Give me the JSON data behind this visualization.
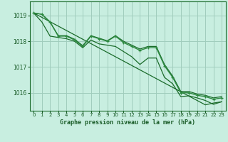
{
  "title": "Graphe pression niveau de la mer (hPa)",
  "bg_color": "#c8eee0",
  "grid_color": "#a0ccbc",
  "line_color": "#1a6b2a",
  "line_color2": "#2d8a40",
  "label_color": "#1a5c28",
  "x_ticks": [
    0,
    1,
    2,
    3,
    4,
    5,
    6,
    7,
    8,
    9,
    10,
    11,
    12,
    13,
    14,
    15,
    16,
    17,
    18,
    19,
    20,
    21,
    22,
    23
  ],
  "y_ticks": [
    1016,
    1017,
    1018,
    1019
  ],
  "ylim": [
    1015.3,
    1019.55
  ],
  "xlim": [
    -0.5,
    23.5
  ],
  "series_main": [
    1019.1,
    1019.05,
    1018.75,
    1018.2,
    1018.2,
    1018.05,
    1017.8,
    1018.2,
    1018.1,
    1018.0,
    1018.2,
    1017.95,
    1017.8,
    1017.65,
    1017.75,
    1017.75,
    1017.05,
    1016.6,
    1016.0,
    1016.0,
    1015.9,
    1015.85,
    1015.75,
    1015.8
  ],
  "series_max": [
    1019.1,
    1019.05,
    1018.75,
    1018.22,
    1018.22,
    1018.08,
    1017.83,
    1018.22,
    1018.12,
    1018.02,
    1018.22,
    1018.0,
    1017.85,
    1017.7,
    1017.8,
    1017.8,
    1017.1,
    1016.65,
    1016.05,
    1016.05,
    1015.95,
    1015.9,
    1015.8,
    1015.85
  ],
  "series_min": [
    1019.1,
    1018.75,
    1018.2,
    1018.15,
    1018.1,
    1018.0,
    1017.75,
    1018.05,
    1017.9,
    1017.85,
    1017.8,
    1017.6,
    1017.4,
    1017.1,
    1017.35,
    1017.35,
    1016.6,
    1016.35,
    1015.85,
    1015.88,
    1015.8,
    1015.7,
    1015.55,
    1015.65
  ],
  "series_trend": [
    1019.1,
    1018.93,
    1018.76,
    1018.59,
    1018.42,
    1018.25,
    1018.08,
    1017.91,
    1017.74,
    1017.57,
    1017.4,
    1017.23,
    1017.06,
    1016.89,
    1016.72,
    1016.55,
    1016.38,
    1016.21,
    1016.04,
    1015.87,
    1015.7,
    1015.53,
    1015.6,
    1015.65
  ]
}
